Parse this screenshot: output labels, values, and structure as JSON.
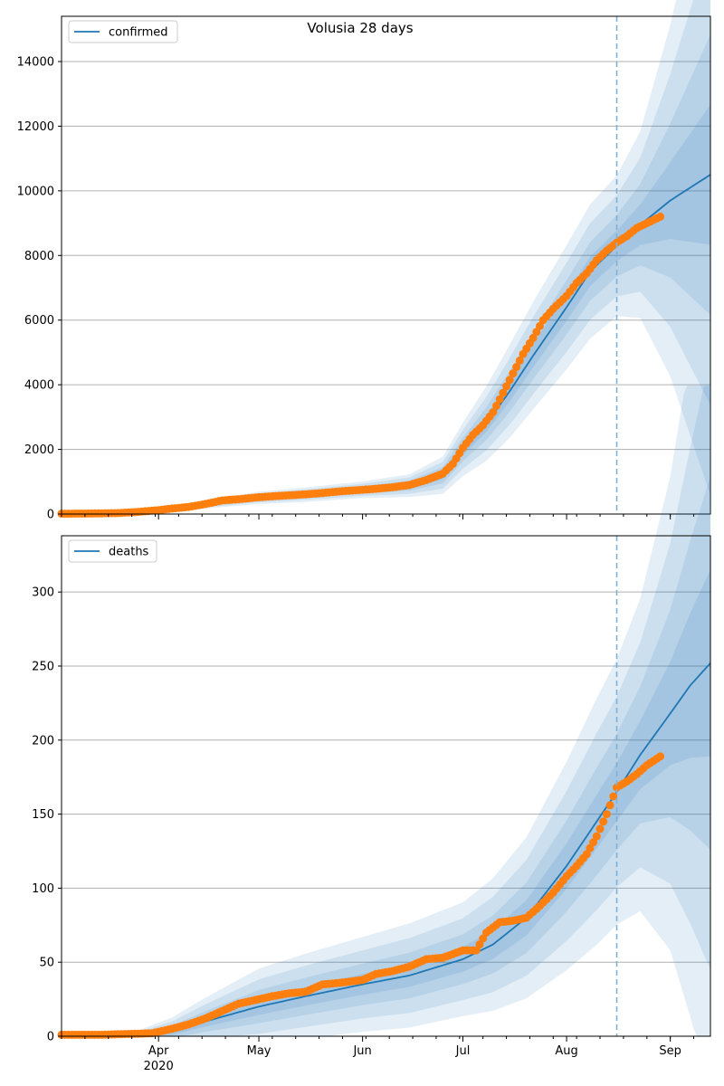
{
  "figure": {
    "title": "Volusia 28 days"
  },
  "colors": {
    "model": "#1f77b4",
    "observed": "#ff7f0e",
    "band": "#1f77b4",
    "grid": "#b0b0b0",
    "forecast_line": "#7fb1d8"
  },
  "x_axis": {
    "labels": [
      {
        "date": "2020-04-01",
        "text": "Apr",
        "sub": "2020"
      },
      {
        "date": "2020-05-01",
        "text": "May"
      },
      {
        "date": "2020-06-01",
        "text": "Jun"
      },
      {
        "date": "2020-07-01",
        "text": "Jul"
      },
      {
        "date": "2020-08-01",
        "text": "Aug"
      },
      {
        "date": "2020-09-01",
        "text": "Sep"
      }
    ],
    "range": [
      "2020-03-03",
      "2020-09-13"
    ],
    "forecast_date": "2020-08-16"
  },
  "chart_data": [
    {
      "type": "line",
      "legend": "confirmed",
      "legend_position": "upper-left",
      "ylim": [
        0,
        15400
      ],
      "yticks": [
        0,
        2000,
        4000,
        6000,
        8000,
        10000,
        12000,
        14000
      ],
      "grid": "horizontal",
      "model": {
        "dates": [
          "2020-03-03",
          "2020-03-20",
          "2020-04-01",
          "2020-04-15",
          "2020-05-01",
          "2020-05-15",
          "2020-06-01",
          "2020-06-15",
          "2020-06-25",
          "2020-07-01",
          "2020-07-08",
          "2020-07-15",
          "2020-07-22",
          "2020-08-01",
          "2020-08-08",
          "2020-08-16",
          "2020-08-23",
          "2020-09-01",
          "2020-09-07",
          "2020-09-13"
        ],
        "values": [
          0,
          20,
          100,
          300,
          500,
          600,
          750,
          880,
          1200,
          2000,
          2800,
          3800,
          4900,
          6400,
          7500,
          8300,
          8950,
          9700,
          10100,
          10500
        ],
        "band_widths": [
          0,
          5,
          20,
          40,
          60,
          70,
          80,
          110,
          180,
          260,
          360,
          450,
          520,
          600,
          650,
          680,
          900,
          1700,
          2400,
          3100
        ]
      },
      "observed": {
        "dates": [
          "2020-03-03",
          "2020-03-10",
          "2020-03-20",
          "2020-03-25",
          "2020-04-01",
          "2020-04-05",
          "2020-04-10",
          "2020-04-15",
          "2020-04-20",
          "2020-04-25",
          "2020-05-01",
          "2020-05-05",
          "2020-05-10",
          "2020-05-15",
          "2020-05-20",
          "2020-05-25",
          "2020-06-01",
          "2020-06-05",
          "2020-06-10",
          "2020-06-15",
          "2020-06-20",
          "2020-06-25",
          "2020-06-28",
          "2020-07-01",
          "2020-07-04",
          "2020-07-07",
          "2020-07-10",
          "2020-07-13",
          "2020-07-16",
          "2020-07-19",
          "2020-07-22",
          "2020-07-25",
          "2020-07-28",
          "2020-08-01",
          "2020-08-04",
          "2020-08-07",
          "2020-08-10",
          "2020-08-13",
          "2020-08-16",
          "2020-08-19",
          "2020-08-22",
          "2020-08-25",
          "2020-08-29"
        ],
        "values": [
          10,
          15,
          30,
          60,
          120,
          170,
          220,
          310,
          420,
          460,
          520,
          550,
          580,
          610,
          650,
          700,
          750,
          780,
          830,
          900,
          1050,
          1250,
          1550,
          2050,
          2450,
          2750,
          3150,
          3750,
          4350,
          4950,
          5450,
          6000,
          6350,
          6750,
          7150,
          7450,
          7850,
          8150,
          8400,
          8600,
          8850,
          9000,
          9200
        ]
      }
    },
    {
      "type": "line",
      "legend": "deaths",
      "legend_position": "upper-left",
      "ylim": [
        0,
        338
      ],
      "yticks": [
        0,
        50,
        100,
        150,
        200,
        250,
        300
      ],
      "grid": "horizontal",
      "model": {
        "dates": [
          "2020-03-03",
          "2020-03-25",
          "2020-04-05",
          "2020-04-15",
          "2020-05-01",
          "2020-05-15",
          "2020-06-01",
          "2020-06-15",
          "2020-07-01",
          "2020-07-10",
          "2020-07-20",
          "2020-08-01",
          "2020-08-10",
          "2020-08-16",
          "2020-08-23",
          "2020-09-01",
          "2020-09-07",
          "2020-09-13"
        ],
        "values": [
          0,
          0,
          3,
          10,
          20,
          27,
          35,
          41,
          52,
          62,
          80,
          115,
          145,
          165,
          190,
          218,
          237,
          252
        ],
        "band_widths": [
          0,
          1,
          3,
          5,
          8,
          9,
          10,
          11,
          12,
          14,
          17,
          22,
          26,
          28,
          33,
          50,
          70,
          90
        ]
      },
      "observed": {
        "dates": [
          "2020-03-03",
          "2020-03-15",
          "2020-03-30",
          "2020-04-05",
          "2020-04-10",
          "2020-04-15",
          "2020-04-20",
          "2020-04-25",
          "2020-05-01",
          "2020-05-05",
          "2020-05-10",
          "2020-05-15",
          "2020-05-20",
          "2020-05-25",
          "2020-06-01",
          "2020-06-05",
          "2020-06-10",
          "2020-06-15",
          "2020-06-20",
          "2020-06-25",
          "2020-07-01",
          "2020-07-05",
          "2020-07-08",
          "2020-07-12",
          "2020-07-16",
          "2020-07-20",
          "2020-07-24",
          "2020-07-28",
          "2020-08-01",
          "2020-08-04",
          "2020-08-07",
          "2020-08-10",
          "2020-08-13",
          "2020-08-16",
          "2020-08-19",
          "2020-08-22",
          "2020-08-25",
          "2020-08-29"
        ],
        "values": [
          1,
          1,
          2,
          5,
          8,
          12,
          17,
          22,
          25,
          27,
          29,
          30,
          35,
          36,
          38,
          42,
          44,
          47,
          52,
          53,
          58,
          58,
          70,
          77,
          78,
          80,
          88,
          97,
          108,
          115,
          123,
          135,
          150,
          168,
          172,
          177,
          183,
          189
        ]
      }
    }
  ]
}
